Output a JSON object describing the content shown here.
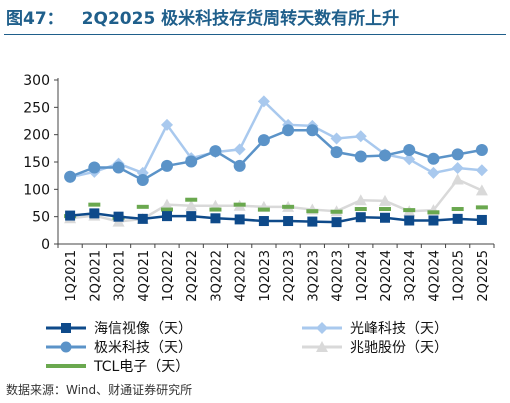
{
  "figure": {
    "number": "图47：",
    "title": "2Q2025 极米科技存货周转天数有所上升"
  },
  "source": "数据来源：Wind、财通证券研究所",
  "colors": {
    "title": "#1f5f8b",
    "hisense": "#0e4a8a",
    "xgimi": "#5b93c8",
    "appotronics": "#a9c9ee",
    "zhaochi": "#d9d9d9",
    "tcl": "#6aa84f"
  },
  "chart_data": {
    "type": "line",
    "categories": [
      "1Q2021",
      "2Q2021",
      "3Q2021",
      "4Q2021",
      "1Q2022",
      "2Q2022",
      "3Q2022",
      "4Q2022",
      "1Q2023",
      "2Q2023",
      "3Q2023",
      "4Q2023",
      "1Q2024",
      "2Q2024",
      "3Q2024",
      "4Q2024",
      "1Q2025",
      "2Q2025"
    ],
    "ylim": [
      0,
      300
    ],
    "yticks": [
      0,
      50,
      100,
      150,
      200,
      250,
      300
    ],
    "grid": false,
    "legend_position": "bottom",
    "series": [
      {
        "name": "海信视像（天）",
        "color": "#0e4a8a",
        "marker": "square",
        "values": [
          52,
          56,
          50,
          46,
          51,
          51,
          47,
          45,
          42,
          42,
          41,
          40,
          49,
          48,
          43,
          43,
          46,
          44
        ]
      },
      {
        "name": "光峰科技（天）",
        "color": "#a9c9ee",
        "marker": "diamond",
        "values": [
          122,
          132,
          147,
          130,
          218,
          157,
          168,
          173,
          261,
          218,
          216,
          193,
          197,
          164,
          155,
          130,
          139,
          135
        ]
      },
      {
        "name": "极米科技（天）",
        "color": "#5b93c8",
        "marker": "circle",
        "values": [
          123,
          140,
          140,
          117,
          143,
          151,
          170,
          143,
          190,
          208,
          208,
          168,
          160,
          162,
          172,
          156,
          164,
          172
        ]
      },
      {
        "name": "兆驰股份（天）",
        "color": "#d9d9d9",
        "marker": "triangle",
        "values": [
          47,
          52,
          41,
          46,
          72,
          70,
          70,
          70,
          68,
          68,
          63,
          60,
          80,
          79,
          60,
          62,
          118,
          98
        ]
      },
      {
        "name": "TCL电子（天）",
        "color": "#6aa84f",
        "marker": "dash",
        "values": [
          51,
          72,
          48,
          68,
          63,
          81,
          63,
          72,
          63,
          68,
          60,
          59,
          64,
          64,
          62,
          58,
          64,
          67
        ]
      }
    ]
  }
}
